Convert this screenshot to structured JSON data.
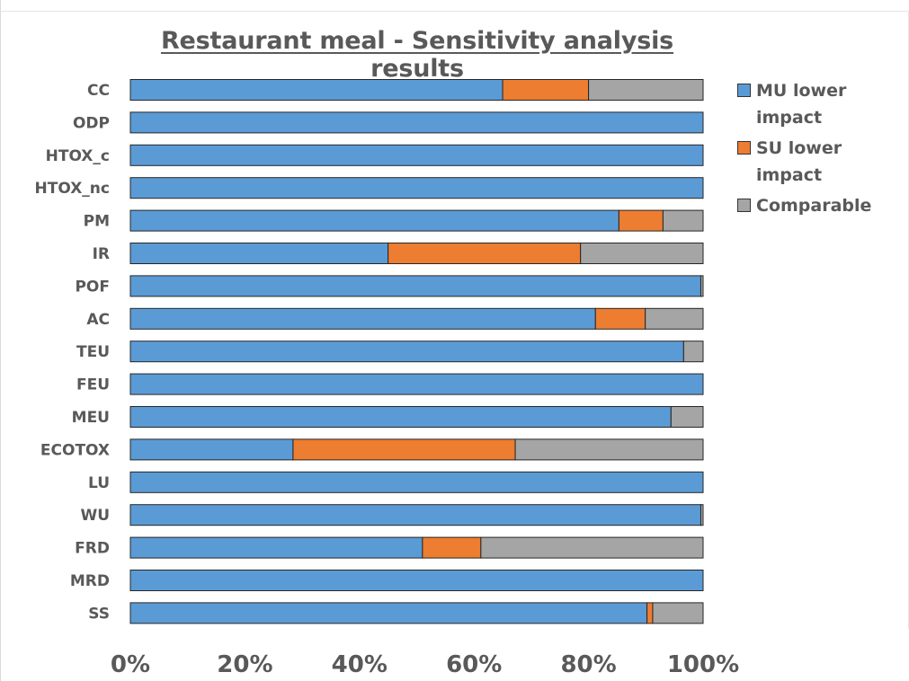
{
  "chart_data": {
    "type": "bar",
    "orientation": "horizontal",
    "stacked": true,
    "title": "Restaurant meal - Sensitivity analysis results",
    "categories": [
      "CC",
      "ODP",
      "HTOX_c",
      "HTOX_nc",
      "PM",
      "IR",
      "POF",
      "AC",
      "TEU",
      "FEU",
      "MEU",
      "ECOTOX",
      "LU",
      "WU",
      "FRD",
      "MRD",
      "SS"
    ],
    "series": [
      {
        "name": "MU lower impact",
        "color": "#5B9BD5",
        "values": [
          65,
          100,
          100,
          100,
          85.3,
          45,
          99.6,
          81.2,
          96.6,
          100,
          94.4,
          28.4,
          100,
          99.6,
          51,
          100,
          90.2
        ]
      },
      {
        "name": "SU lower impact",
        "color": "#ED7D31",
        "values": [
          15,
          0,
          0,
          0,
          7.7,
          33.6,
          0,
          8.7,
          0,
          0,
          0,
          38.8,
          0,
          0,
          10.2,
          0,
          1
        ]
      },
      {
        "name": "Comparable",
        "color": "#A5A5A5",
        "values": [
          20,
          0,
          0,
          0,
          7,
          21.4,
          0.4,
          10.1,
          3.4,
          0,
          5.6,
          32.8,
          0,
          0.4,
          38.8,
          0,
          8.8
        ]
      }
    ],
    "xlim": [
      0,
      100
    ],
    "x_ticks": [
      "0%",
      "20%",
      "40%",
      "60%",
      "80%",
      "100%"
    ],
    "grid": false,
    "legend_position": "right"
  }
}
